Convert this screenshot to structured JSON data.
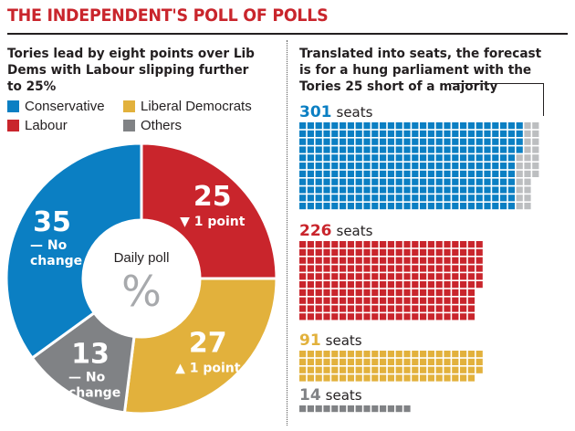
{
  "title": "THE INDEPENDENT'S POLL OF POLLS",
  "colors": {
    "conservative": "#0b7fc3",
    "labour": "#c9252c",
    "libdem": "#e2b13c",
    "others": "#808285",
    "shortfall": "#bcbec0",
    "title": "#c9252c"
  },
  "left_panel": {
    "subtitle": "Tories lead by eight points over Lib Dems with Labour slipping further to 25%",
    "center_label": "Daily poll",
    "center_symbol": "%"
  },
  "right_panel": {
    "subtitle": "Translated into seats, the forecast is for a hung parliament with the Tories 25 short of a majority"
  },
  "chart_data": [
    {
      "type": "pie",
      "subtype": "donut",
      "legend_placement": "top",
      "legend": [
        "Conservative",
        "Liberal Democrats",
        "Labour",
        "Others"
      ],
      "slices": [
        {
          "name": "Labour",
          "value": 25,
          "change": "▼ 1 point",
          "color_key": "labour"
        },
        {
          "name": "Liberal Democrats",
          "value": 27,
          "change": "▲ 1 point",
          "color_key": "libdem"
        },
        {
          "name": "Others",
          "value": 13,
          "change": "— No change",
          "color_key": "others"
        },
        {
          "name": "Conservative",
          "value": 35,
          "change": "— No change",
          "color_key": "conservative"
        }
      ]
    },
    {
      "type": "bar",
      "subtype": "unit-squares",
      "seat_unit": "seats",
      "series": [
        {
          "name": "Conservative",
          "seats": 301,
          "shortfall_to_majority": 25,
          "color_key": "conservative"
        },
        {
          "name": "Labour",
          "seats": 226,
          "color_key": "labour"
        },
        {
          "name": "Liberal Democrats",
          "seats": 91,
          "color_key": "libdem"
        },
        {
          "name": "Others",
          "seats": 14,
          "color_key": "others"
        }
      ]
    }
  ]
}
